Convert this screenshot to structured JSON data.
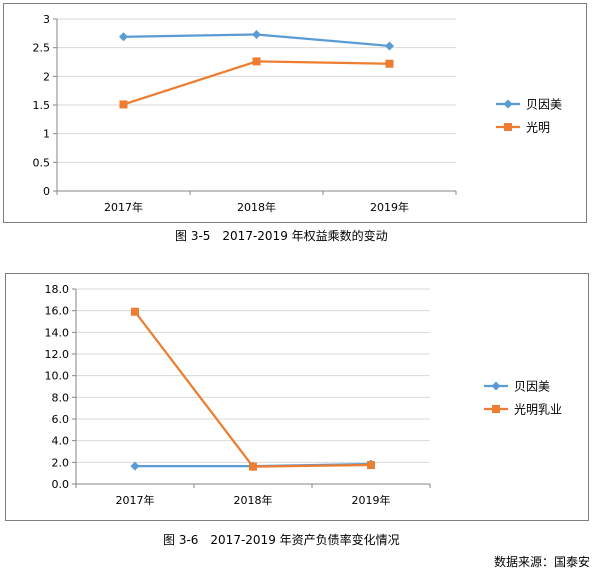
{
  "chart_data": [
    {
      "type": "line",
      "title": "",
      "categories": [
        "2017年",
        "2018年",
        "2019年"
      ],
      "ylim": [
        0,
        3
      ],
      "yticks": [
        "0",
        "0.5",
        "1",
        "1.5",
        "2",
        "2.5",
        "3"
      ],
      "grid": true,
      "legend": "right",
      "series": [
        {
          "name": "贝因美",
          "values": [
            2.69,
            2.73,
            2.53
          ],
          "color": "#5b9bd5",
          "marker": "diamond"
        },
        {
          "name": "光明",
          "values": [
            1.51,
            2.26,
            2.22
          ],
          "color": "#ed7d31",
          "marker": "square"
        }
      ]
    },
    {
      "type": "line",
      "title": "",
      "categories": [
        "2017年",
        "2018年",
        "2019年"
      ],
      "ylim": [
        0,
        18
      ],
      "yticks": [
        "0.0",
        "2.0",
        "4.0",
        "6.0",
        "8.0",
        "10.0",
        "12.0",
        "14.0",
        "16.0",
        "18.0"
      ],
      "grid": true,
      "legend": "right",
      "series": [
        {
          "name": "贝因美",
          "values": [
            1.65,
            1.65,
            1.85
          ],
          "color": "#5b9bd5",
          "marker": "diamond"
        },
        {
          "name": "光明乳业",
          "values": [
            15.9,
            1.6,
            1.75
          ],
          "color": "#ed7d31",
          "marker": "square"
        }
      ]
    }
  ],
  "captions": {
    "fig1": "图 3-5　2017-2019 年权益乘数的变动",
    "fig2": "图 3-6　2017-2019 年资产负债率变化情况"
  },
  "source": "数据来源：国泰安"
}
